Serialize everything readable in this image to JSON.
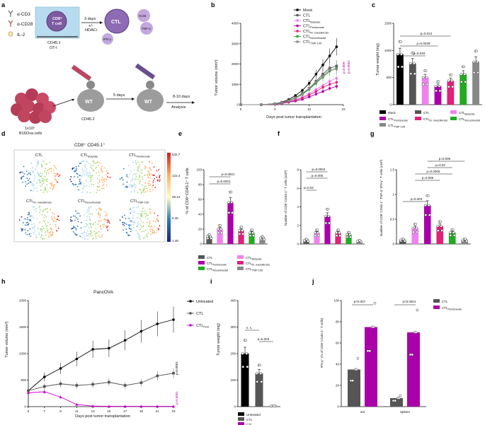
{
  "panels": {
    "a": {
      "letter": "a",
      "legend": [
        "α-CD3",
        "α-CD28",
        "IL-2"
      ],
      "cd8_cell": {
        "line1": "CD8⁺",
        "line2": "T cell"
      },
      "donor": {
        "line1": "CD45.1",
        "line2": "OT-I"
      },
      "arrow1": {
        "line1": "3 days",
        "line2": "+/-",
        "line3": "HDACi"
      },
      "ctl": "CTL",
      "secreted": {
        "grzb": "GrzB",
        "tnf": "TNF-α",
        "ifn": "IFN-γ"
      },
      "tumor": {
        "line1": "1x10⁶",
        "line2": "B16Ova cells"
      },
      "mouse": {
        "label": "WT",
        "sub": "CD45.2"
      },
      "arrow2": "5 days",
      "arrow3": "8-10 days",
      "analysis": "Analysis"
    },
    "b": {
      "letter": "b",
      "ylabel": "Tumor volume (mm³)",
      "xlabel": "Days post tumor transplantation",
      "legend": [
        "Mock",
        "CTL",
        "CTL_Butyrate",
        "CTL_Pentanoate",
        "CTL_M. massiliensis",
        "CTL_Mocetinostat",
        "CTL_TMP-195"
      ],
      "pvals": [
        "p=0.009",
        "p=0.0001"
      ]
    },
    "c": {
      "letter": "c",
      "ylabel": "Tumor weight (mg)",
      "pvals": [
        "p=0.013",
        "p=0.0038",
        "p=0.049"
      ],
      "legend": [
        "Mock",
        "CTL",
        "CTL_Butyrate",
        "CTL_Pentanoate",
        "CTL_M. massiliensis",
        "CTL_Mocetinostat",
        "CTL_TMP-195"
      ]
    },
    "d": {
      "letter": "d",
      "title": "CD8⁺ CD45.1⁺",
      "tiles": [
        "CTL",
        "CTL_Butyrate",
        "CTL_Pentanoate",
        "CTL_M. massiliensis",
        "CTL_Mocetinostat",
        "CTL_TMP-195"
      ],
      "scale": [
        "532.7",
        "122.4",
        "28.13",
        "6.46",
        "1.48"
      ]
    },
    "e": {
      "letter": "e",
      "ylabel": "% of CD8⁺CD45.1⁺ T cells",
      "pvals": [
        "p=0.0001",
        "p=0.0001"
      ],
      "legend": [
        "CTL",
        "CTL_Butyrate",
        "CTL_Pentanoate",
        "CTL_M. massiliensis",
        "CTL_Mocetinostat",
        "CTL_TMP-195"
      ]
    },
    "f": {
      "letter": "f",
      "ylabel": "Number of CD8⁺CD45.1⁺ T cells (x10³)",
      "pvals": [
        "p=0.0004",
        "p=0.006",
        "p=0.02"
      ]
    },
    "g": {
      "letter": "g",
      "ylabel": "Number of CD8⁺CD45.1⁺ TNF-α⁺IFN-γ⁺ T cells (x10³)",
      "pvals": [
        "p=0.005",
        "p=0.02",
        "p=0.0005",
        "p=0.005",
        "p=0.003"
      ]
    },
    "h": {
      "letter": "h",
      "title": "PancOVA",
      "ylabel": "Tumor volume (mm³)",
      "xlabel": "Days post tumor transplantation",
      "legend": [
        "Untreated",
        "CTL",
        "CTL_Pent"
      ],
      "pvals": [
        "p=0.0001",
        "p=0.0001"
      ]
    },
    "i": {
      "letter": "i",
      "ylabel": "Tumor weight (mg)",
      "pvals": [
        "n. s.",
        "p=0.003"
      ],
      "legend": [
        "Untreated",
        "CTL",
        "CTL_Pentanoate"
      ]
    },
    "j": {
      "letter": "j",
      "ylabel": "IFN-γ⁺ (% of CD8⁺CD45.1⁺ T cells)",
      "groups": [
        "iLN",
        "Spleen"
      ],
      "pvals": [
        "p<0.007",
        "p<0.0001"
      ],
      "legend": [
        "CTL",
        "CTL_Pentanoate"
      ]
    }
  },
  "colors": {
    "mock": "#000000",
    "ctl": "#555555",
    "butyrate": "#ee82ee",
    "pentanoate": "#aa00aa",
    "massiliensis": "#e0207a",
    "mocetinostat": "#22aa22",
    "tmp195": "#888888"
  },
  "chart_data": [
    {
      "panel": "b",
      "type": "line",
      "x": [
        0,
        3,
        5,
        6,
        7,
        8,
        9,
        10,
        11,
        12,
        13,
        14
      ],
      "xlim": [
        0,
        15
      ],
      "ylim": [
        0,
        4000
      ],
      "xticks": [
        0,
        5,
        10,
        15
      ],
      "yticks": [
        0,
        1000,
        2000,
        3000,
        4000
      ],
      "series": [
        {
          "name": "Mock",
          "values": [
            0,
            0,
            50,
            120,
            250,
            450,
            700,
            1050,
            1500,
            1950,
            2400,
            2850
          ]
        },
        {
          "name": "CTL",
          "values": [
            0,
            0,
            40,
            100,
            200,
            350,
            550,
            800,
            1150,
            1500,
            1800,
            1900
          ]
        },
        {
          "name": "CTL_Butyrate",
          "values": [
            0,
            0,
            30,
            80,
            150,
            250,
            380,
            550,
            750,
            950,
            1150,
            1300
          ]
        },
        {
          "name": "CTL_Pentanoate",
          "values": [
            0,
            0,
            30,
            60,
            120,
            180,
            260,
            380,
            520,
            650,
            800,
            900
          ]
        },
        {
          "name": "CTL_M. massiliensis",
          "values": [
            0,
            0,
            30,
            70,
            140,
            220,
            330,
            480,
            650,
            850,
            1000,
            1100
          ]
        },
        {
          "name": "CTL_Mocetinostat",
          "values": [
            0,
            0,
            40,
            90,
            180,
            320,
            500,
            750,
            1050,
            1350,
            1650,
            1800
          ]
        },
        {
          "name": "CTL_TMP-195",
          "values": [
            0,
            0,
            40,
            100,
            190,
            330,
            520,
            780,
            1100,
            1400,
            1700,
            1750
          ]
        }
      ]
    },
    {
      "panel": "c",
      "type": "bar",
      "ylim": [
        0,
        1500
      ],
      "yticks": [
        0,
        500,
        1000,
        1500
      ],
      "categories": [
        "Mock",
        "CTL",
        "CTL_Butyrate",
        "CTL_Pentanoate",
        "CTL_M. massiliensis",
        "CTL_Mocetinostat",
        "CTL_TMP-195"
      ],
      "values": [
        930,
        760,
        500,
        340,
        440,
        560,
        790
      ]
    },
    {
      "panel": "e",
      "type": "bar",
      "ylim": [
        0,
        100
      ],
      "yticks": [
        0,
        20,
        40,
        60,
        80,
        100
      ],
      "categories": [
        "CTL",
        "CTL_Butyrate",
        "CTL_Pentanoate",
        "CTL_M. massiliensis",
        "CTL_Mocetinostat",
        "CTL_TMP-195"
      ],
      "values": [
        10,
        20,
        56,
        18,
        15,
        8
      ]
    },
    {
      "panel": "f",
      "type": "bar",
      "ylim": [
        0,
        8
      ],
      "yticks": [
        0,
        2,
        4,
        6,
        8
      ],
      "categories": [
        "CTL",
        "CTL_Butyrate",
        "CTL_Pentanoate",
        "CTL_M. massiliensis",
        "CTL_Mocetinostat",
        "CTL_TMP-195"
      ],
      "values": [
        0.4,
        1.2,
        3.0,
        1.2,
        1.0,
        0.3
      ]
    },
    {
      "panel": "g",
      "type": "bar",
      "ylim": [
        0,
        1.5
      ],
      "yticks": [
        0,
        0.5,
        1.0,
        1.5
      ],
      "categories": [
        "CTL",
        "CTL_Butyrate",
        "CTL_Pentanoate",
        "CTL_M. massiliensis",
        "CTL_Mocetinostat",
        "CTL_TMP-195"
      ],
      "values": [
        0.08,
        0.32,
        0.78,
        0.36,
        0.23,
        0.08
      ]
    },
    {
      "panel": "h",
      "type": "line",
      "x": [
        5,
        7,
        9,
        11,
        13,
        15,
        17,
        19,
        21,
        23
      ],
      "xlim": [
        5,
        23
      ],
      "ylim": [
        0,
        2000
      ],
      "xticks": [
        5,
        7,
        9,
        11,
        13,
        15,
        17,
        19,
        21,
        23
      ],
      "yticks": [
        0,
        500,
        1000,
        1500,
        2000
      ],
      "series": [
        {
          "name": "Untreated",
          "values": [
            300,
            560,
            720,
            900,
            1080,
            1100,
            1250,
            1420,
            1560,
            1640
          ]
        },
        {
          "name": "CTL",
          "values": [
            300,
            380,
            430,
            400,
            420,
            460,
            400,
            450,
            580,
            630
          ]
        },
        {
          "name": "CTL_Pent",
          "values": [
            260,
            280,
            180,
            40,
            10,
            5,
            5,
            5,
            5,
            5
          ]
        }
      ]
    },
    {
      "panel": "i",
      "type": "bar",
      "ylim": [
        0,
        400
      ],
      "yticks": [
        0,
        100,
        200,
        300,
        400
      ],
      "categories": [
        "Untreated",
        "CTL",
        "CTL_Pentanoate"
      ],
      "values": [
        200,
        125,
        2
      ]
    },
    {
      "panel": "j",
      "type": "bar",
      "ylim": [
        0,
        100
      ],
      "yticks": [
        0,
        20,
        40,
        60,
        80,
        100
      ],
      "categories": [
        "iLN",
        "Spleen"
      ],
      "series": [
        {
          "name": "CTL",
          "values": [
            35,
            8
          ]
        },
        {
          "name": "CTL_Pentanoate",
          "values": [
            75,
            70
          ]
        }
      ]
    }
  ]
}
